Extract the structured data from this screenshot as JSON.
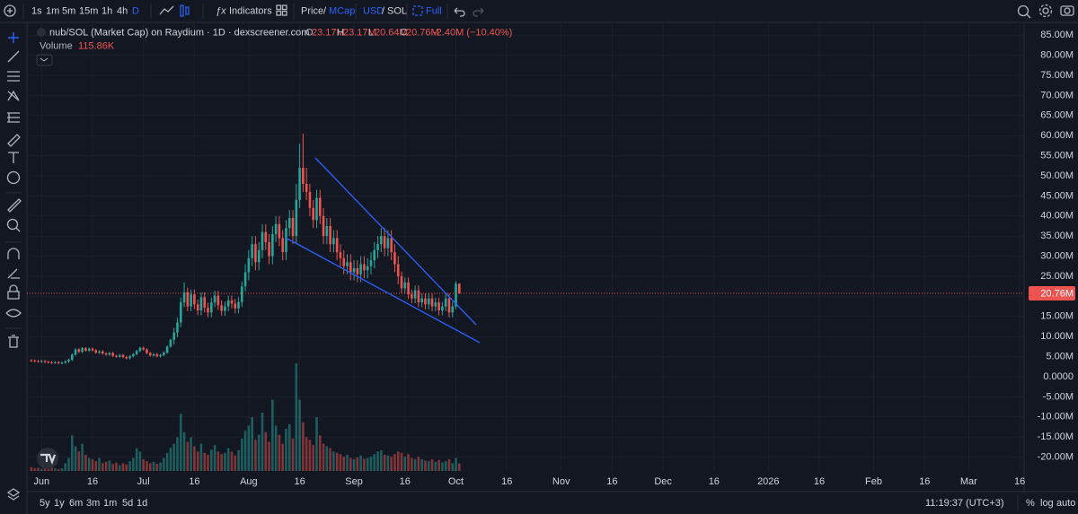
{
  "toolbar": {
    "intervals": [
      "1s",
      "1m",
      "5m",
      "15m",
      "1h",
      "4h",
      "D"
    ],
    "indicators": "Indicators",
    "price": "Price",
    "price_sep": "/",
    "mcap": "MCap",
    "usd": "USD",
    "currency_sep": "/",
    "sol": "SOL",
    "full": "Full"
  },
  "legend": {
    "title": "nub/SOL (Market Cap) on Raydium · 1D · dexscreener.com",
    "ohlc": [
      {
        "key": "O",
        "value": "23.17M"
      },
      {
        "key": "H",
        "value": "23.17M"
      },
      {
        "key": "L",
        "value": "20.64M"
      },
      {
        "key": "C",
        "value": "20.76M"
      }
    ],
    "change": "-2.40M (−10.40%)",
    "volume_name": "Volume",
    "volume_value": "115.86K"
  },
  "chart_data": {
    "type": "candlestick",
    "up_color": "#26a69a",
    "down_color": "#ef5350",
    "grid": true,
    "xlim": [
      -1.3,
      292.3
    ],
    "ylim": [
      -23.44,
      88.17
    ],
    "vlim": [
      0,
      1800
    ],
    "xticks": [
      {
        "value": 3,
        "label": "Jun"
      },
      {
        "value": 18,
        "label": "16"
      },
      {
        "value": 33,
        "label": "Jul"
      },
      {
        "value": 48,
        "label": "16"
      },
      {
        "value": 64,
        "label": "Aug"
      },
      {
        "value": 79,
        "label": "16"
      },
      {
        "value": 95,
        "label": "Sep"
      },
      {
        "value": 110,
        "label": "16"
      },
      {
        "value": 125,
        "label": "Oct"
      },
      {
        "value": 140,
        "label": "16"
      },
      {
        "value": 156,
        "label": "Nov"
      },
      {
        "value": 171,
        "label": "16"
      },
      {
        "value": 186,
        "label": "Dec"
      },
      {
        "value": 201,
        "label": "16"
      },
      {
        "value": 217,
        "label": "2026"
      },
      {
        "value": 232,
        "label": "16"
      },
      {
        "value": 248,
        "label": "Feb"
      },
      {
        "value": 263,
        "label": "16"
      },
      {
        "value": 276,
        "label": "Mar"
      },
      {
        "value": 291,
        "label": "16"
      }
    ],
    "yticks": [
      {
        "value": 85,
        "label": "85.00M"
      },
      {
        "value": 80,
        "label": "80.00M"
      },
      {
        "value": 75,
        "label": "75.00M"
      },
      {
        "value": 70,
        "label": "70.00M"
      },
      {
        "value": 65,
        "label": "65.00M"
      },
      {
        "value": 60,
        "label": "60.00M"
      },
      {
        "value": 55,
        "label": "55.00M"
      },
      {
        "value": 50,
        "label": "50.00M"
      },
      {
        "value": 45,
        "label": "45.00M"
      },
      {
        "value": 40,
        "label": "40.00M"
      },
      {
        "value": 35,
        "label": "35.00M"
      },
      {
        "value": 30,
        "label": "30.00M"
      },
      {
        "value": 25,
        "label": "25.00M"
      },
      {
        "value": 20,
        "label": "20.00M"
      },
      {
        "value": 15,
        "label": "15.00M"
      },
      {
        "value": 10,
        "label": "10.00M"
      },
      {
        "value": 5,
        "label": "5.00M"
      },
      {
        "value": 0,
        "label": "0.0000"
      },
      {
        "value": -5,
        "label": "-5.00M"
      },
      {
        "value": -10,
        "label": "-10.00M"
      },
      {
        "value": -15,
        "label": "-15.00M"
      },
      {
        "value": -20,
        "label": "-20.00M"
      }
    ],
    "last_price_label": "20.76M",
    "open": [
      4.1,
      4.0,
      3.9,
      3.8,
      3.9,
      3.7,
      3.6,
      3.5,
      3.6,
      3.4,
      3.5,
      3.8,
      4.2,
      5.5,
      6.8,
      6.2,
      7.1,
      6.5,
      7.0,
      6.6,
      6.0,
      6.3,
      5.8,
      5.5,
      5.9,
      5.2,
      5.0,
      5.4,
      4.9,
      4.6,
      5.1,
      5.6,
      6.4,
      7.2,
      6.8,
      5.9,
      5.3,
      5.6,
      5.1,
      5.4,
      6.0,
      7.5,
      9.2,
      11.0,
      13.5,
      18.5,
      21.0,
      17.5,
      20.5,
      18.0,
      16.5,
      19.8,
      17.2,
      16.0,
      18.5,
      20.2,
      17.8,
      16.4,
      17.5,
      19.0,
      18.2,
      17.0,
      18.6,
      22.5,
      26.0,
      29.5,
      33.0,
      28.5,
      31.5,
      36.0,
      33.5,
      30.0,
      35.5,
      38.0,
      34.5,
      31.0,
      37.0,
      39.5,
      35.0,
      44.0,
      52.0,
      48.0,
      46.0,
      42.0,
      39.0,
      44.5,
      40.0,
      35.0,
      37.5,
      33.0,
      34.5,
      31.0,
      29.5,
      27.5,
      28.5,
      26.0,
      27.0,
      25.5,
      28.0,
      26.5,
      27.5,
      29.0,
      31.5,
      33.0,
      35.0,
      32.0,
      34.5,
      31.0,
      28.0,
      25.0,
      22.0,
      23.5,
      20.5,
      19.5,
      21.5,
      18.5,
      19.5,
      18.0,
      19.5,
      17.5,
      18.5,
      16.5,
      17.5,
      19.5,
      16.0,
      17.5,
      23.17
    ],
    "high": [
      4.4,
      4.3,
      4.2,
      4.2,
      4.2,
      4.0,
      3.9,
      3.9,
      3.9,
      3.8,
      4.1,
      4.5,
      5.8,
      7.1,
      7.1,
      7.4,
      7.4,
      7.3,
      7.3,
      6.9,
      6.6,
      6.6,
      6.1,
      6.2,
      6.2,
      5.5,
      5.7,
      5.7,
      5.2,
      5.4,
      5.9,
      6.7,
      7.5,
      7.5,
      7.1,
      6.2,
      5.9,
      5.9,
      5.7,
      6.3,
      7.8,
      9.5,
      12.2,
      14.7,
      19.7,
      23.5,
      22.2,
      21.7,
      21.7,
      19.2,
      21.0,
      21.0,
      18.4,
      19.7,
      21.4,
      21.4,
      19.0,
      18.7,
      20.2,
      20.2,
      19.4,
      19.8,
      23.7,
      28.0,
      31.5,
      35.0,
      35.0,
      33.5,
      38.0,
      38.0,
      35.5,
      37.5,
      40.0,
      40.0,
      36.5,
      39.0,
      41.5,
      41.5,
      48.0,
      58.0,
      60.5,
      52.0,
      48.0,
      44.0,
      46.5,
      46.5,
      42.0,
      39.5,
      39.5,
      36.5,
      36.5,
      33.0,
      31.5,
      30.5,
      30.5,
      29.0,
      29.0,
      30.0,
      30.0,
      29.5,
      31.0,
      33.5,
      35.0,
      37.0,
      37.0,
      36.5,
      36.5,
      33.0,
      30.0,
      26.2,
      24.7,
      24.7,
      21.7,
      22.7,
      22.7,
      20.7,
      20.7,
      20.7,
      20.7,
      19.7,
      19.7,
      18.7,
      20.7,
      20.7,
      18.7,
      23.8,
      23.17
    ],
    "low": [
      3.7,
      3.6,
      3.5,
      3.5,
      3.4,
      3.3,
      3.2,
      3.2,
      3.1,
      3.1,
      3.2,
      3.5,
      3.9,
      5.2,
      5.9,
      5.9,
      6.2,
      6.2,
      6.3,
      5.7,
      5.7,
      5.5,
      5.2,
      5.2,
      4.9,
      4.7,
      4.7,
      4.6,
      4.3,
      4.3,
      4.8,
      5.3,
      6.1,
      6.5,
      5.6,
      5.0,
      5.0,
      4.8,
      4.8,
      5.1,
      5.7,
      7.2,
      8.0,
      9.8,
      12.3,
      17.3,
      16.3,
      16.3,
      16.8,
      15.3,
      15.3,
      16.0,
      14.8,
      14.8,
      17.3,
      16.6,
      15.2,
      15.2,
      16.3,
      17.0,
      15.8,
      15.8,
      17.4,
      21.3,
      24.0,
      27.5,
      26.5,
      26.5,
      29.5,
      31.5,
      28.0,
      28.0,
      33.5,
      32.5,
      29.0,
      29.0,
      35.0,
      33.0,
      33.0,
      42.0,
      46.0,
      44.0,
      40.0,
      37.0,
      37.0,
      38.0,
      33.0,
      33.0,
      31.0,
      31.0,
      29.0,
      27.5,
      25.5,
      25.5,
      24.0,
      24.0,
      23.5,
      23.5,
      24.5,
      24.5,
      25.5,
      27.0,
      29.5,
      31.0,
      30.0,
      30.0,
      29.0,
      26.0,
      23.0,
      20.8,
      20.8,
      19.3,
      18.3,
      18.3,
      17.3,
      17.3,
      16.8,
      16.8,
      16.3,
      16.3,
      15.3,
      15.3,
      16.3,
      14.8,
      14.8,
      16.8,
      20.64
    ],
    "close": [
      4.0,
      3.9,
      3.8,
      3.9,
      3.7,
      3.6,
      3.5,
      3.6,
      3.4,
      3.5,
      3.8,
      4.2,
      5.5,
      6.8,
      6.2,
      7.1,
      6.5,
      7.0,
      6.6,
      6.0,
      6.3,
      5.8,
      5.5,
      5.9,
      5.2,
      5.0,
      5.4,
      4.9,
      4.6,
      5.1,
      5.6,
      6.4,
      7.2,
      6.8,
      5.9,
      5.3,
      5.6,
      5.1,
      5.4,
      6.0,
      7.5,
      9.2,
      11.0,
      13.5,
      18.5,
      21.0,
      17.5,
      20.5,
      18.0,
      16.5,
      19.8,
      17.2,
      16.0,
      18.5,
      20.2,
      17.8,
      16.4,
      17.5,
      19.0,
      18.2,
      17.0,
      18.6,
      22.5,
      26.0,
      29.5,
      33.0,
      28.5,
      31.5,
      36.0,
      33.5,
      30.0,
      35.5,
      38.0,
      34.5,
      31.0,
      37.0,
      39.5,
      35.0,
      44.0,
      52.0,
      48.0,
      46.0,
      42.0,
      39.0,
      44.5,
      40.0,
      35.0,
      37.5,
      33.0,
      34.5,
      31.0,
      29.5,
      27.5,
      28.5,
      26.0,
      27.0,
      25.5,
      28.0,
      26.5,
      27.5,
      29.0,
      31.5,
      33.0,
      35.0,
      32.0,
      34.5,
      31.0,
      28.0,
      25.0,
      22.0,
      23.5,
      20.5,
      19.5,
      21.5,
      18.5,
      19.5,
      18.0,
      19.5,
      17.5,
      18.5,
      16.5,
      17.5,
      19.5,
      16.0,
      17.5,
      23.17,
      20.76
    ],
    "volume": [
      60,
      40,
      50,
      30,
      40,
      30,
      50,
      40,
      30,
      40,
      120,
      200,
      550,
      380,
      300,
      420,
      250,
      200,
      180,
      150,
      200,
      120,
      140,
      160,
      110,
      130,
      90,
      120,
      100,
      150,
      200,
      350,
      300,
      180,
      150,
      120,
      140,
      110,
      130,
      200,
      280,
      360,
      420,
      520,
      880,
      600,
      450,
      520,
      380,
      300,
      420,
      280,
      250,
      330,
      400,
      300,
      260,
      280,
      350,
      300,
      240,
      320,
      500,
      620,
      700,
      830,
      480,
      560,
      900,
      600,
      450,
      1100,
      700,
      560,
      420,
      650,
      720,
      500,
      1660,
      1100,
      750,
      520,
      480,
      400,
      830,
      550,
      420,
      380,
      350,
      300,
      280,
      260,
      220,
      250,
      200,
      180,
      210,
      240,
      190,
      200,
      220,
      260,
      300,
      320,
      250,
      240,
      220,
      260,
      300,
      280,
      220,
      260,
      200,
      180,
      220,
      180,
      160,
      150,
      180,
      140,
      170,
      130,
      150,
      180,
      120,
      200,
      115.86
    ]
  },
  "bottombar": {
    "ranges": [
      "5y",
      "1y",
      "6m",
      "3m",
      "1m",
      "5d",
      "1d"
    ],
    "clock": "11:19:37 (UTC+3)",
    "percent": "%",
    "log": "log",
    "auto": "auto"
  }
}
